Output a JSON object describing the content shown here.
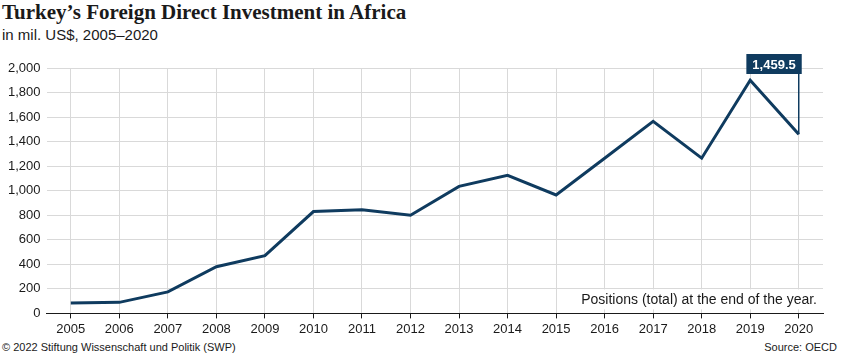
{
  "chart_data": {
    "type": "line",
    "title": "Turkey’s Foreign Direct Investment in Africa",
    "subtitle": "in mil. US$, 2005–2020",
    "categories": [
      "2005",
      "2006",
      "2007",
      "2008",
      "2009",
      "2010",
      "2011",
      "2012",
      "2013",
      "2014",
      "2015",
      "2016",
      "2017",
      "2018",
      "2019",
      "2020"
    ],
    "values": [
      85,
      90,
      175,
      380,
      470,
      830,
      845,
      800,
      1035,
      1125,
      965,
      1265,
      1565,
      1265,
      1900,
      1459.5
    ],
    "color": "#0f3b5f",
    "ylim": [
      0,
      2000
    ],
    "yticks": [
      0,
      200,
      400,
      600,
      800,
      {
        "value": 1000,
        "label": "1,000"
      },
      {
        "value": 1200,
        "label": "1,200"
      },
      {
        "value": 1400,
        "label": "1,400"
      },
      {
        "value": 1600,
        "label": "1,600"
      },
      {
        "value": 1800,
        "label": "1,800"
      },
      {
        "value": 2000,
        "label": "2,000"
      }
    ],
    "grid": true,
    "annotation": {
      "category": "2020",
      "text": "1,459.5"
    },
    "note": "Positions (total) at the end of the year.",
    "footer": "© 2022 Stiftung Wissenschaft und Politik (SWP)",
    "source": "Source: OECD"
  }
}
